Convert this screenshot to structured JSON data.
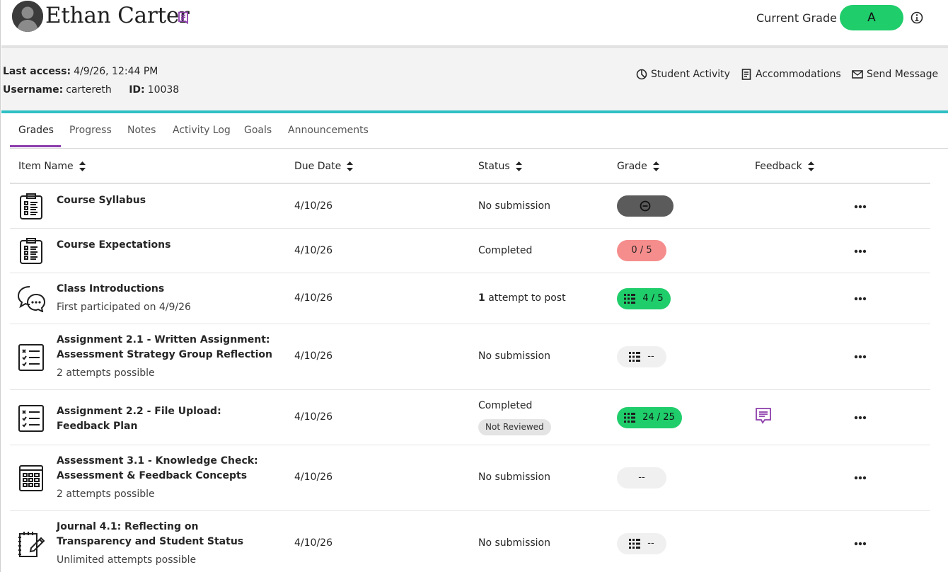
{
  "header": {
    "student_name": "Ethan Carter",
    "current_grade_label": "Current Grade",
    "current_grade_value": "A",
    "colors": {
      "grade_green": "#1fcd6b",
      "accent_purple": "#8c3dab",
      "teal": "#2fc0c4"
    },
    "icons": [
      "avatar",
      "note-icon",
      "info-icon"
    ]
  },
  "info": {
    "last_access_label": "Last access:",
    "last_access_value": "4/9/26, 12:44 PM",
    "username_label": "Username:",
    "username_value": "cartereth",
    "id_label": "ID:",
    "id_value": "10038",
    "actions": {
      "student_activity": "Student Activity",
      "accommodations": "Accommodations",
      "send_message": "Send Message"
    }
  },
  "tabs": [
    "Grades",
    "Progress",
    "Notes",
    "Activity Log",
    "Goals",
    "Announcements"
  ],
  "active_tab": "Grades",
  "table": {
    "columns": {
      "item_name": "Item Name",
      "due_date": "Due Date",
      "status": "Status",
      "grade": "Grade",
      "feedback": "Feedback"
    },
    "rows": [
      {
        "icon": "syllabus-icon",
        "title": "Course Syllabus",
        "sub": "",
        "due": "4/10/26",
        "status": "No submission",
        "grade": "",
        "grade_style": "dark-exempt"
      },
      {
        "icon": "syllabus-icon",
        "title": "Course Expectations",
        "sub": "",
        "due": "4/10/26",
        "status": "Completed",
        "grade": "0 / 5",
        "grade_style": "red"
      },
      {
        "icon": "discussion-icon",
        "title": "Class Introductions",
        "sub": "First participated on 4/9/26",
        "due": "4/10/26",
        "status_bold": "1",
        "status": "attempt to post",
        "grade": "4 / 5",
        "grade_style": "green-rubric"
      },
      {
        "icon": "assignment-icon",
        "title": "Assignment 2.1 - Written Assignment: Assessment Strategy Group Reflection",
        "sub": "2 attempts possible",
        "due": "4/10/26",
        "status": "No submission",
        "grade": "--",
        "grade_style": "gray-rubric"
      },
      {
        "icon": "assignment-icon",
        "title": "Assignment 2.2 - File Upload: Feedback Plan",
        "sub": "",
        "due": "4/10/26",
        "status": "Completed",
        "status_badge": "Not Reviewed",
        "grade": "24 / 25",
        "grade_style": "green-rubric",
        "feedback": true
      },
      {
        "icon": "test-icon",
        "title": "Assessment 3.1 - Knowledge Check: Assessment & Feedback Concepts",
        "sub": "2 attempts possible",
        "due": "4/10/26",
        "status": "No submission",
        "grade": "--",
        "grade_style": "gray"
      },
      {
        "icon": "journal-icon",
        "title": "Journal 4.1: Reflecting on Transparency and Student Status",
        "sub": "Unlimited attempts possible",
        "due": "4/10/26",
        "status": "No submission",
        "grade": "--",
        "grade_style": "gray-rubric"
      }
    ]
  }
}
